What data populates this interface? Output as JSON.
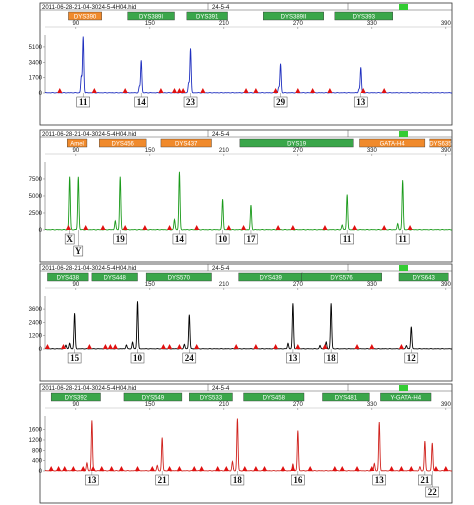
{
  "colors": {
    "blue": "#1f2fbf",
    "green": "#1a9a1a",
    "black": "#000000",
    "red": "#d0231e",
    "marker_green": "#3aa64a",
    "marker_orange": "#f08a2c",
    "size_standard": "#e01010",
    "status_green": "#33cc33"
  },
  "chart_data": [
    {
      "type": "line",
      "title": "2011-06-28-21-04-3024-5-4H04.hid",
      "subtitle": "24-5-4",
      "dye": "blue",
      "x_ticks": [
        90,
        150,
        210,
        270,
        330,
        390
      ],
      "xlim": [
        65,
        395
      ],
      "y_ticks": [
        0,
        1700,
        3400,
        5100
      ],
      "ylim": [
        0,
        6200
      ],
      "markers": [
        {
          "label": "DYS390",
          "start": 84,
          "end": 111,
          "color": "orange"
        },
        {
          "label": "DYS389I",
          "start": 132,
          "end": 170,
          "color": "green"
        },
        {
          "label": "DYS391",
          "start": 180,
          "end": 213,
          "color": "green"
        },
        {
          "label": "DYS389II",
          "start": 242,
          "end": 291,
          "color": "green"
        },
        {
          "label": "DYS393",
          "start": 300,
          "end": 347,
          "color": "green"
        }
      ],
      "peaks": [
        {
          "x": 96,
          "y": 6200,
          "allele": "11"
        },
        {
          "x": 143,
          "y": 3600,
          "allele": "14"
        },
        {
          "x": 183,
          "y": 4900,
          "allele": "23"
        },
        {
          "x": 256,
          "y": 3200,
          "allele": "29"
        },
        {
          "x": 321,
          "y": 2800,
          "allele": "13"
        }
      ],
      "minor_peaks": [
        {
          "x": 94.5,
          "y": 1800
        },
        {
          "x": 141.5,
          "y": 700
        },
        {
          "x": 181.5,
          "y": 1100
        },
        {
          "x": 254.5,
          "y": 600
        },
        {
          "x": 319.5,
          "y": 400
        }
      ],
      "size_standard": [
        77,
        105,
        130,
        159,
        170,
        174,
        177,
        193,
        228,
        236,
        252,
        270,
        282,
        296,
        323,
        340
      ]
    },
    {
      "type": "line",
      "title": "2011-06-28-21-04-3024-5-4H04.hid",
      "subtitle": "24-5-4",
      "dye": "green",
      "x_ticks": [
        90,
        150,
        210,
        270,
        330,
        390
      ],
      "xlim": [
        65,
        395
      ],
      "y_ticks": [
        0,
        2500,
        5000,
        7500
      ],
      "ylim": [
        0,
        9700
      ],
      "markers": [
        {
          "label": "Amel",
          "start": 83,
          "end": 99,
          "color": "orange"
        },
        {
          "label": "DYS456",
          "start": 109,
          "end": 147,
          "color": "orange"
        },
        {
          "label": "DYS437",
          "start": 159,
          "end": 200,
          "color": "orange"
        },
        {
          "label": "DYS19",
          "start": 223,
          "end": 315,
          "color": "green"
        },
        {
          "label": "GATA-H4",
          "start": 320,
          "end": 373,
          "color": "orange"
        },
        {
          "label": "DYS635",
          "start": 377,
          "end": 396,
          "color": "orange"
        }
      ],
      "peaks": [
        {
          "x": 85,
          "y": 7800,
          "allele": "X"
        },
        {
          "x": 92,
          "y": 7800,
          "allele": "Y"
        },
        {
          "x": 126,
          "y": 7800,
          "allele": "19"
        },
        {
          "x": 174,
          "y": 8500,
          "allele": "14"
        },
        {
          "x": 209,
          "y": 4500,
          "allele": "10"
        },
        {
          "x": 232,
          "y": 3600,
          "allele": "17"
        },
        {
          "x": 310,
          "y": 5200,
          "allele": "11"
        },
        {
          "x": 355,
          "y": 7300,
          "allele": "11"
        }
      ],
      "minor_peaks": [
        {
          "x": 122,
          "y": 1300
        },
        {
          "x": 170,
          "y": 1500
        },
        {
          "x": 306,
          "y": 700
        },
        {
          "x": 351,
          "y": 900
        }
      ],
      "size_standard": [
        84,
        98,
        112,
        130,
        146,
        166,
        188,
        214,
        226,
        254,
        266,
        292,
        316,
        340,
        361
      ]
    },
    {
      "type": "line",
      "title": "2011-06-28-21-04-3024-5-4H04.hid",
      "subtitle": "24-5-4",
      "dye": "black",
      "x_ticks": [
        90,
        150,
        210,
        270,
        330,
        390
      ],
      "xlim": [
        65,
        395
      ],
      "y_ticks": [
        0,
        1200,
        2400,
        3600
      ],
      "ylim": [
        0,
        4600
      ],
      "markers": [
        {
          "label": "DYS438",
          "start": 67,
          "end": 100,
          "color": "green"
        },
        {
          "label": "DYS448",
          "start": 103,
          "end": 140,
          "color": "green"
        },
        {
          "label": "DYS570",
          "start": 147,
          "end": 200,
          "color": "green"
        },
        {
          "label": "DYS439",
          "start": 222,
          "end": 274,
          "color": "green"
        },
        {
          "label": "DYS576",
          "start": 273,
          "end": 338,
          "color": "green"
        },
        {
          "label": "DYS643",
          "start": 352,
          "end": 392,
          "color": "green"
        }
      ],
      "peaks": [
        {
          "x": 89,
          "y": 3200,
          "allele": "15"
        },
        {
          "x": 140,
          "y": 4300,
          "allele": "10"
        },
        {
          "x": 182,
          "y": 3100,
          "allele": "24"
        },
        {
          "x": 266,
          "y": 4100,
          "allele": "13"
        },
        {
          "x": 297,
          "y": 4100,
          "allele": "18"
        },
        {
          "x": 362,
          "y": 2000,
          "allele": "12"
        }
      ],
      "minor_peaks": [
        {
          "x": 85,
          "y": 500
        },
        {
          "x": 82,
          "y": 350
        },
        {
          "x": 136,
          "y": 600
        },
        {
          "x": 131,
          "y": 350
        },
        {
          "x": 178,
          "y": 400
        },
        {
          "x": 262,
          "y": 500
        },
        {
          "x": 293,
          "y": 600
        },
        {
          "x": 288,
          "y": 300
        },
        {
          "x": 358,
          "y": 300
        }
      ],
      "size_standard": [
        67,
        80,
        101,
        114,
        118,
        122,
        161,
        166,
        174,
        188,
        220,
        236,
        252,
        270,
        292,
        318,
        330,
        354
      ]
    },
    {
      "type": "line",
      "title": "2011-06-28-21-04-3024-5-4H04.hid",
      "subtitle": "24-5-4",
      "dye": "red",
      "x_ticks": [
        90,
        150,
        210,
        270,
        330,
        390
      ],
      "xlim": [
        65,
        395
      ],
      "y_ticks": [
        0,
        400,
        800,
        1200,
        1600
      ],
      "ylim": [
        0,
        2050
      ],
      "markers": [
        {
          "label": "DYS392",
          "start": 70,
          "end": 110,
          "color": "green"
        },
        {
          "label": "DYS549",
          "start": 129,
          "end": 176,
          "color": "green"
        },
        {
          "label": "DYS533",
          "start": 182,
          "end": 217,
          "color": "green"
        },
        {
          "label": "DYS458",
          "start": 226,
          "end": 275,
          "color": "green"
        },
        {
          "label": "DYS481",
          "start": 290,
          "end": 328,
          "color": "green"
        },
        {
          "label": "Y-GATA-H4",
          "start": 337,
          "end": 378,
          "color": "green"
        }
      ],
      "peaks": [
        {
          "x": 103,
          "y": 1950,
          "allele": "13"
        },
        {
          "x": 160,
          "y": 1280,
          "allele": "21"
        },
        {
          "x": 221,
          "y": 2020,
          "allele": "18"
        },
        {
          "x": 270,
          "y": 1560,
          "allele": "16"
        },
        {
          "x": 336,
          "y": 1880,
          "allele": "13"
        },
        {
          "x": 373,
          "y": 1150,
          "allele": "21"
        },
        {
          "x": 379,
          "y": 1080,
          "allele": "22"
        }
      ],
      "minor_peaks": [
        {
          "x": 99,
          "y": 300
        },
        {
          "x": 156,
          "y": 200
        },
        {
          "x": 217,
          "y": 350
        },
        {
          "x": 266,
          "y": 260
        },
        {
          "x": 332,
          "y": 280
        },
        {
          "x": 369,
          "y": 150
        }
      ],
      "size_standard": [
        70,
        76,
        81,
        88,
        96,
        104,
        111,
        119,
        127,
        140,
        152,
        166,
        174,
        186,
        192,
        205,
        212,
        227,
        236,
        243,
        258,
        266,
        280,
        300,
        306,
        318,
        330,
        346,
        354,
        362,
        382,
        390
      ]
    }
  ]
}
